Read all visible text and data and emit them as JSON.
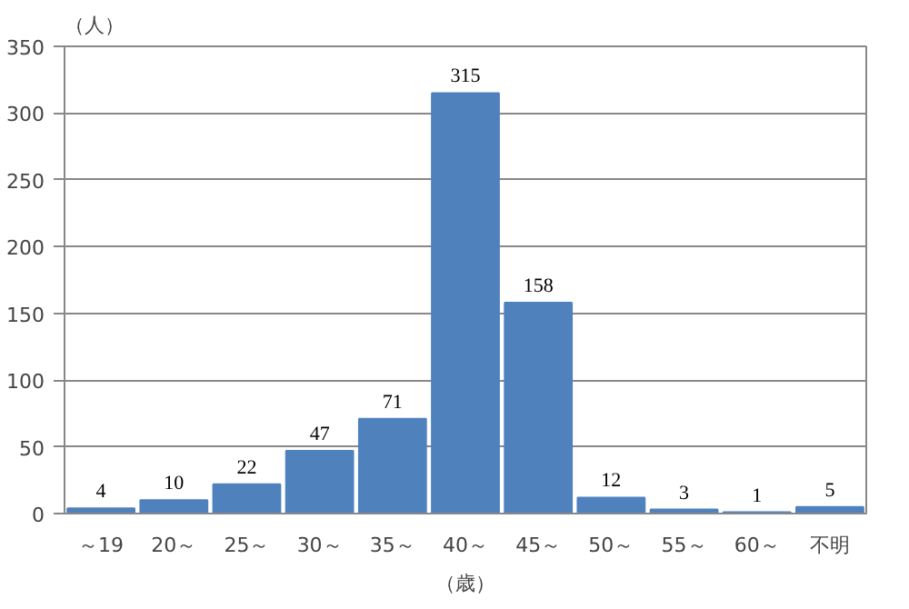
{
  "chart_data": {
    "type": "bar",
    "ylabel": "（人）",
    "xlabel": "（歳）",
    "categories": [
      "～19",
      "20～",
      "25～",
      "30～",
      "35～",
      "40～",
      "45～",
      "50～",
      "55～",
      "60～",
      "不明"
    ],
    "values": [
      4,
      10,
      22,
      47,
      71,
      315,
      158,
      12,
      3,
      1,
      5
    ],
    "color": "#4f81bd",
    "ylim": [
      0,
      350
    ],
    "yticks": [
      0,
      50,
      100,
      150,
      200,
      250,
      300,
      350
    ],
    "grid": "y",
    "data_labels": true
  }
}
